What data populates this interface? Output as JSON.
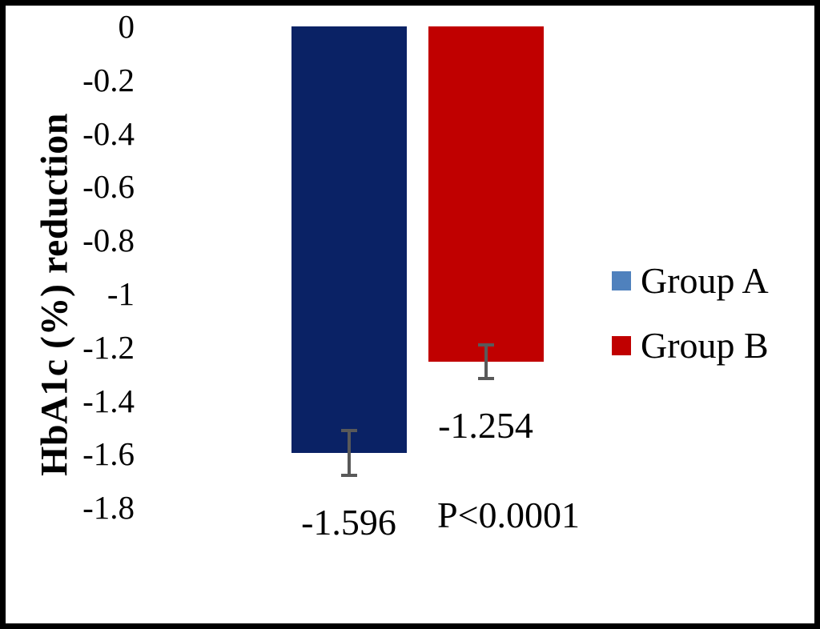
{
  "chart_data": {
    "type": "bar",
    "title": "",
    "xlabel": "",
    "ylabel": "HbA1c (%) reduction",
    "ylim": [
      -1.8,
      0
    ],
    "ytick_labels": [
      "0",
      "-0.2",
      "-0.4",
      "-0.6",
      "-0.8",
      "-1",
      "-1.2",
      "-1.4",
      "-1.6",
      "-1.8"
    ],
    "grid": false,
    "legend_position": "right",
    "series": [
      {
        "name": "Group A",
        "value": -1.596,
        "error": 0.08,
        "data_label": "-1.596",
        "bar_color": "#0A2265",
        "legend_color": "#4F81BD"
      },
      {
        "name": "Group B",
        "value": -1.254,
        "error": 0.06,
        "data_label": "-1.254",
        "bar_color": "#C00000",
        "legend_color": "#C00000"
      }
    ],
    "annotation": "P<0.0001"
  },
  "colors": {
    "error_bar": "#595959",
    "frame_border": "#000000",
    "background": "#FFFFFF",
    "text": "#000000"
  }
}
